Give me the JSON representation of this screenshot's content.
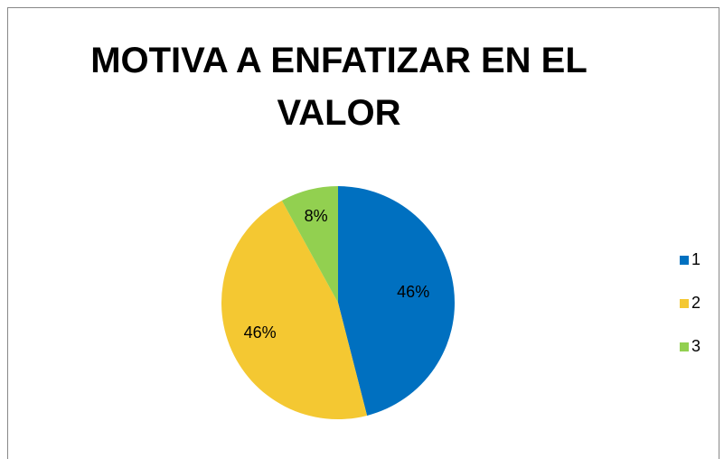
{
  "chart_data": {
    "type": "pie",
    "title": "MOTIVA A ENFATIZAR EN EL VALOR",
    "categories": [
      "1",
      "2",
      "3"
    ],
    "values": [
      46,
      46,
      8
    ],
    "value_labels": [
      "46%",
      "46%",
      "8%"
    ],
    "colors": [
      "#0070c0",
      "#f4c832",
      "#92d050"
    ],
    "legend": "right"
  }
}
